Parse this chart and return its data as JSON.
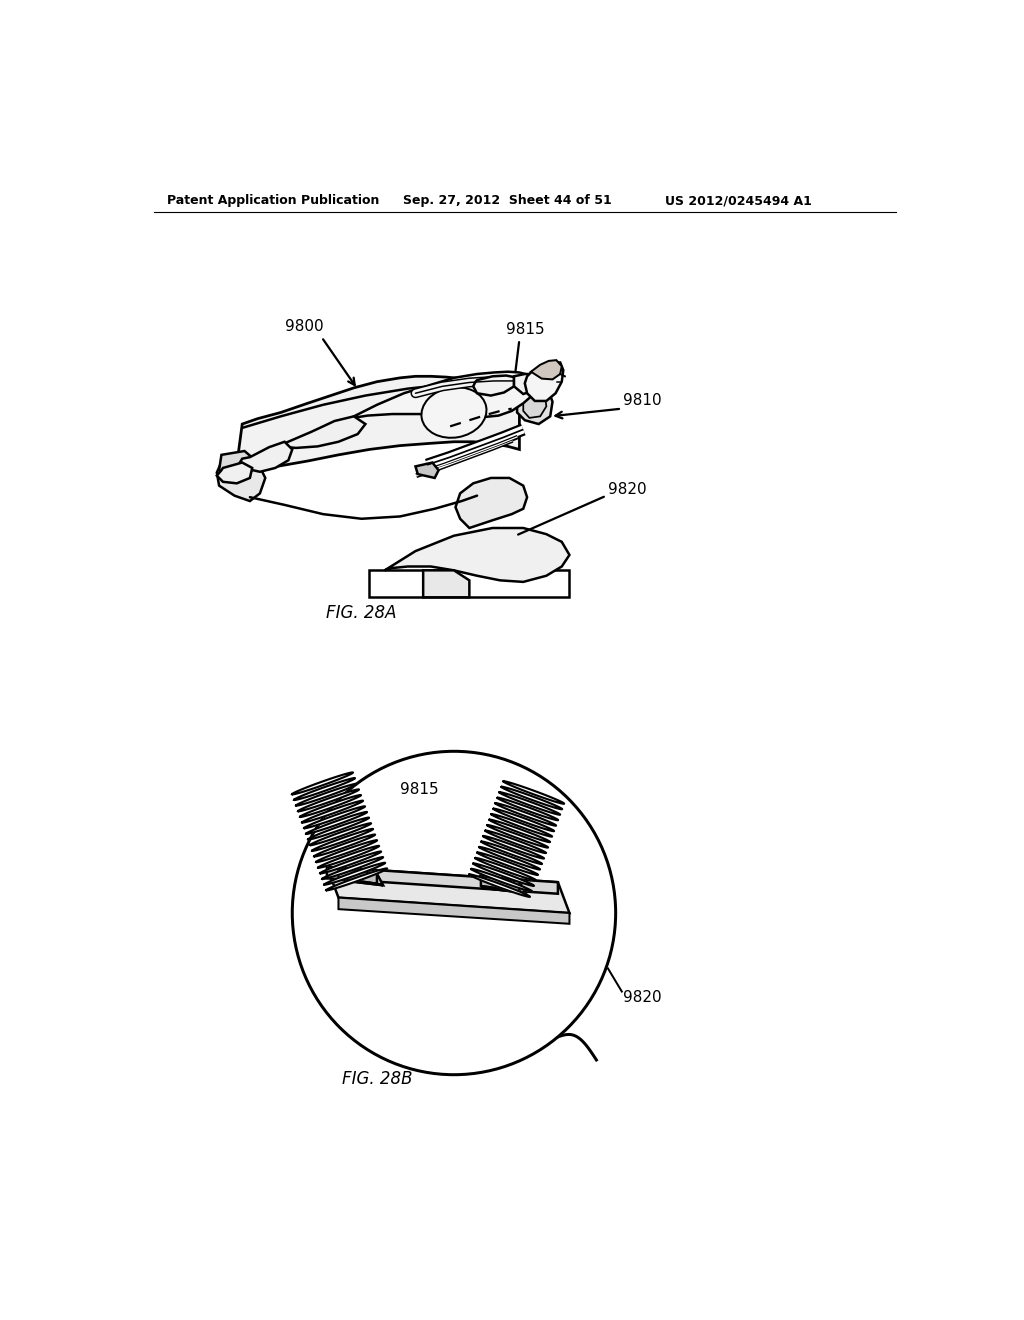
{
  "background_color": "#ffffff",
  "line_color": "#000000",
  "header_left": "Patent Application Publication",
  "header_mid": "Sep. 27, 2012  Sheet 44 of 51",
  "header_right": "US 2012/0245494 A1",
  "fig28a_label": "FIG. 28A",
  "fig28b_label": "FIG. 28B",
  "label_9800": "9800",
  "label_9815a": "9815",
  "label_9810": "9810",
  "label_9820a": "9820",
  "label_9815b": "9815",
  "label_9820b": "9820"
}
